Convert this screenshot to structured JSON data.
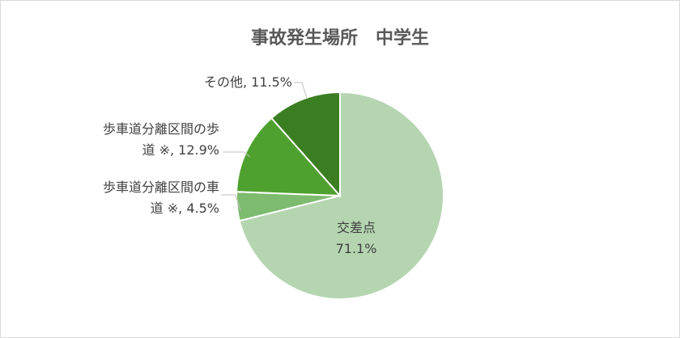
{
  "chart_data": {
    "type": "pie",
    "title": "事故発生場所　中学生",
    "categories": [
      "交差点",
      "歩車道分離区間の車道 ※",
      "歩車道分離区間の歩道 ※",
      "その他"
    ],
    "values": [
      71.1,
      4.5,
      12.9,
      11.5
    ],
    "value_labels": [
      "71.1%",
      "4.5%",
      "12.9%",
      "11.5%"
    ],
    "label_separator": ", ",
    "colors": [
      "#b4d5b0",
      "#7dbb6e",
      "#4fa12f",
      "#3b7e22"
    ]
  }
}
